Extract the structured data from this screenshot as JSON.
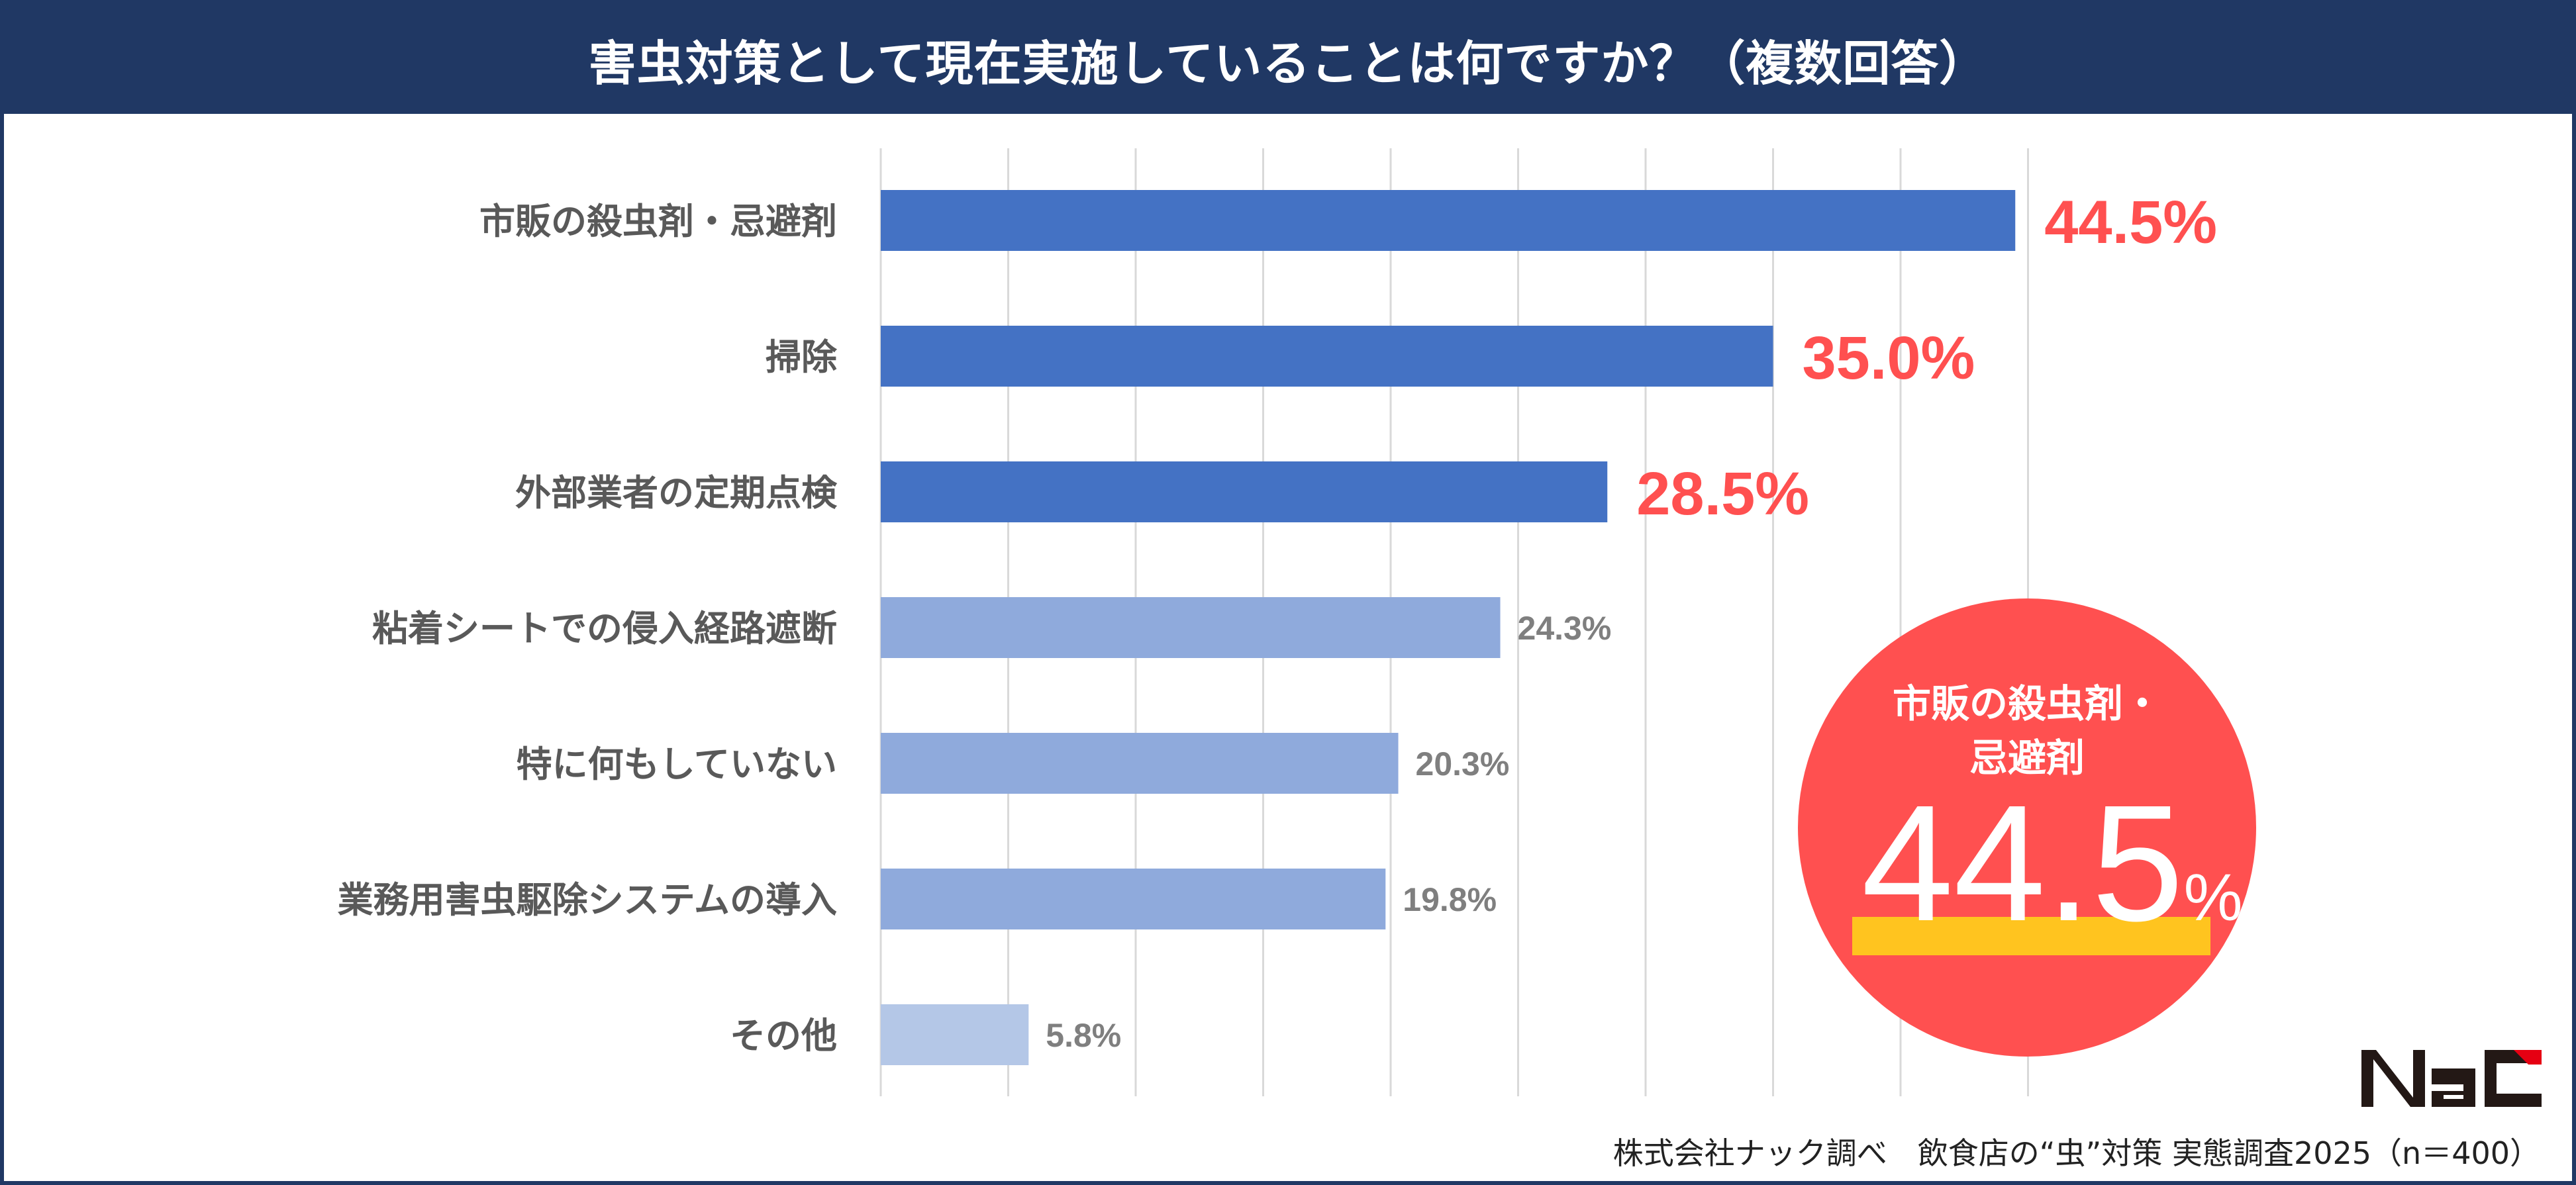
{
  "title": "害虫対策として現在実施していることは何ですか？（複数回答）",
  "chart_data": {
    "type": "bar",
    "orientation": "horizontal",
    "title": "害虫対策として現在実施していることは何ですか？（複数回答）",
    "categories": [
      "市販の殺虫剤・忌避剤",
      "掃除",
      "外部業者の定期点検",
      "粘着シートでの侵入経路遮断",
      "特に何もしていない",
      "業務用害虫駆除システムの導入",
      "その他"
    ],
    "values": [
      44.5,
      35.0,
      28.5,
      24.3,
      20.3,
      19.8,
      5.8
    ],
    "data_labels": [
      "44.5%",
      "35.0%",
      "28.5%",
      "24.3%",
      "20.3%",
      "19.8%",
      "5.8%"
    ],
    "unit": "%",
    "xlim": [
      0,
      45
    ],
    "grid": true,
    "gridline_step": 5,
    "axis_tick_labels_shown": false,
    "bar_colors": [
      "#4472c4",
      "#4472c4",
      "#4472c4",
      "#8faadc",
      "#8faadc",
      "#8faadc",
      "#b4c7e7"
    ],
    "label_colors": [
      "#ff5050",
      "#ff5050",
      "#ff5050",
      "#7f7f7f",
      "#7f7f7f",
      "#7f7f7f",
      "#7f7f7f"
    ]
  },
  "highlight": {
    "label": "市販の殺虫剤・忌避剤",
    "label_line1": "市販の殺虫剤・",
    "label_line2": "忌避剤",
    "value": "44.5",
    "unit": "%",
    "circle_color": "#ff5050",
    "underline_color": "#ffc41f"
  },
  "logo": {
    "text": "Nac",
    "colors": [
      "#231815",
      "#e60012"
    ]
  },
  "footer": "株式会社ナック調べ　飲食店の“虫”対策 実態調査2025（n＝400）",
  "colors": {
    "header": "#203864"
  }
}
